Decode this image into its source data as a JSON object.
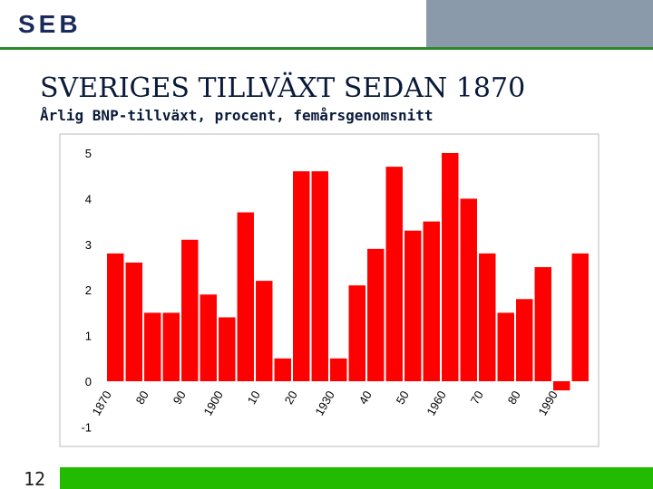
{
  "logo": "SEB",
  "page_number": "12",
  "chart_data": {
    "type": "bar",
    "title": "SVERIGES TILLVÄXT SEDAN 1870",
    "subtitle": "Årlig BNP-tillväxt, procent, femårsgenomsnitt",
    "categories": [
      "1870",
      null,
      "80",
      null,
      "90",
      null,
      "1900",
      null,
      "10",
      null,
      "20",
      null,
      "1930",
      null,
      "40",
      null,
      "50",
      null,
      "1960",
      null,
      "70",
      null,
      "80",
      null,
      "1990",
      null
    ],
    "values": [
      2.8,
      2.6,
      1.5,
      1.5,
      3.1,
      1.9,
      1.4,
      3.7,
      2.2,
      0.5,
      4.6,
      4.6,
      0.5,
      2.1,
      2.9,
      4.7,
      3.3,
      3.5,
      5.0,
      4.0,
      2.8,
      1.5,
      1.8,
      2.5,
      -0.2,
      2.8
    ],
    "color": "#ff0000",
    "ylim": [
      -1,
      5
    ],
    "yticks": [
      -1,
      0,
      1,
      2,
      3,
      4,
      5
    ],
    "grid": false
  }
}
